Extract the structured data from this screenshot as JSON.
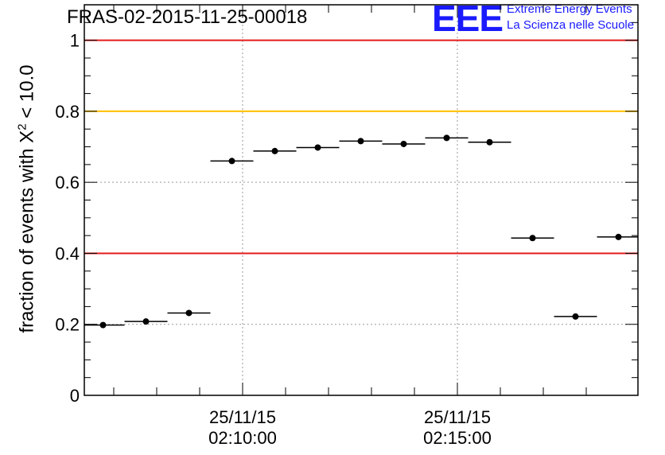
{
  "header": {
    "title": "FRAS-02-2015-11-25-00018",
    "logo_text": "EEE",
    "logo_line1": "Extreme Energy Events",
    "logo_line2": "La Scienza nelle Scuole"
  },
  "colors": {
    "red_line": "#e41a1c",
    "yellow_line": "#ffc000",
    "logo_blue": "#1a1aff",
    "points": "#000000"
  },
  "chart_data": {
    "type": "scatter",
    "title": "FRAS-02-2015-11-25-00018",
    "ylabel_prefix": "fraction of events with X",
    "ylabel_sup": "2",
    "ylabel_suffix": " < 10.0",
    "ylim": [
      0,
      1.1
    ],
    "yticks": [
      {
        "value": 0,
        "label": "0"
      },
      {
        "value": 0.2,
        "label": "0.2"
      },
      {
        "value": 0.4,
        "label": "0.4"
      },
      {
        "value": 0.6,
        "label": "0.6"
      },
      {
        "value": 0.8,
        "label": "0.8"
      },
      {
        "value": 1,
        "label": "1"
      }
    ],
    "xlim_seconds": [
      -262,
      509
    ],
    "xtick_labels": [
      {
        "t": 0,
        "date": "25/11/15",
        "time": "02:10:00"
      },
      {
        "t": 300,
        "date": "25/11/15",
        "time": "02:15:00"
      }
    ],
    "grid": true,
    "reference_lines": [
      {
        "y": 1.0,
        "color": "red"
      },
      {
        "y": 0.8,
        "color": "yellow"
      },
      {
        "y": 0.4,
        "color": "red"
      }
    ],
    "points": [
      {
        "t": -195,
        "y": 0.198,
        "half_width": 30
      },
      {
        "t": -135,
        "y": 0.208,
        "half_width": 30
      },
      {
        "t": -75,
        "y": 0.232,
        "half_width": 30
      },
      {
        "t": -15,
        "y": 0.66,
        "half_width": 30
      },
      {
        "t": 45,
        "y": 0.688,
        "half_width": 30
      },
      {
        "t": 105,
        "y": 0.698,
        "half_width": 30
      },
      {
        "t": 165,
        "y": 0.716,
        "half_width": 30
      },
      {
        "t": 225,
        "y": 0.708,
        "half_width": 30
      },
      {
        "t": 285,
        "y": 0.725,
        "half_width": 30
      },
      {
        "t": 345,
        "y": 0.713,
        "half_width": 30
      },
      {
        "t": 405,
        "y": 0.443,
        "half_width": 30
      },
      {
        "t": 465,
        "y": 0.222,
        "half_width": 30
      },
      {
        "t": 525,
        "y": 0.446,
        "half_width": 30
      }
    ]
  }
}
